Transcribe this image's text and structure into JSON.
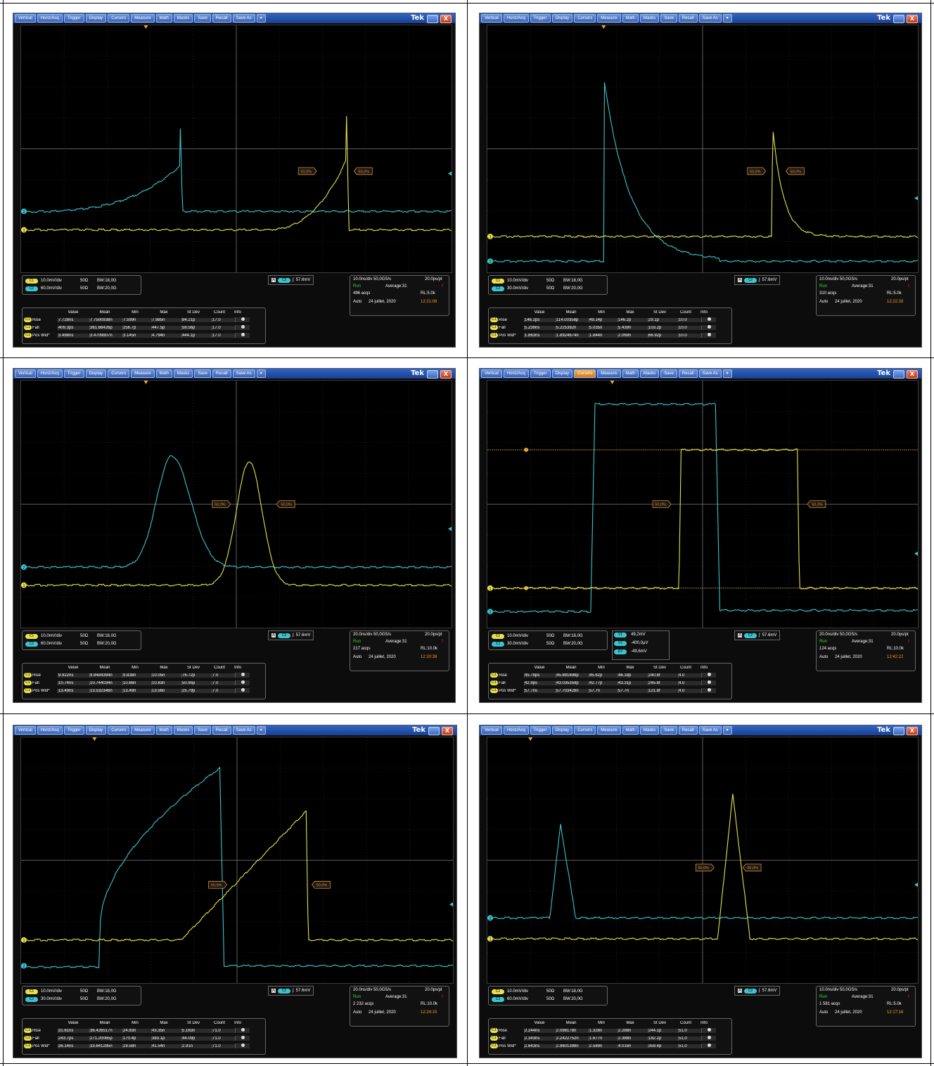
{
  "menu_items": [
    "Vertical",
    "Horiz/Acq",
    "Trigger",
    "Display",
    "Cursors",
    "Measure",
    "Math",
    "Masks",
    "Save",
    "Recall",
    "Save As",
    "▾"
  ],
  "brand": "Tek",
  "close_glyph": "X",
  "colors": {
    "ch1": "#e9e24a",
    "ch2": "#39c6d0",
    "grid": "#5a5a5a",
    "background": "#000000",
    "menu_active": "#f6b04a"
  },
  "meas_header": {
    "value": "Value",
    "mean": "Mean",
    "min": "Min",
    "max": "Max",
    "stdev": "St Dev",
    "count": "Count",
    "info": "Info"
  },
  "screens": [
    {
      "active_menu": -1,
      "ch1": {
        "tag": "C1",
        "scale": "10.0mV/div",
        "imp": "50Ω",
        "bw": "BW:18,0G"
      },
      "ch2": {
        "tag": "C2",
        "scale": "60.0mV/div",
        "imp": "50Ω",
        "bw": "BW:20,0G"
      },
      "trigger": {
        "tag": "C2",
        "level": "57.6mV"
      },
      "horizontal": {
        "timebase": "10.0ns/div 50,0GS/s",
        "res": "20.0ps/pt",
        "run": "Run",
        "avg": "Average:31",
        "acqs": "496 acqs",
        "rl": "RL:5.0k",
        "auto": "Auto",
        "date": "24 juillet, 2020",
        "time": "12:21:08"
      },
      "markers": [
        "50,0%",
        "50,0%"
      ],
      "measurements": [
        {
          "tag": "C1",
          "name": "Rise",
          "value": "7.728ns",
          "mean": "7.7500938n",
          "min": "7.599n",
          "max": "7.985n",
          "stdev": "84.21p",
          "count": "17.0"
        },
        {
          "tag": "C1",
          "name": "Fall",
          "value": "409.3ps",
          "mean": "361.68426p",
          "min": "256.7p",
          "max": "447.5p",
          "stdev": "58.56p",
          "count": "17.0"
        },
        {
          "tag": "C1",
          "name": "Pos Wid*",
          "value": "3.498ns",
          "mean": "3.4709807n",
          "min": "3.145n",
          "max": "4.794n",
          "stdev": "444.1p",
          "count": "17.0"
        }
      ]
    },
    {
      "active_menu": -1,
      "ch1": {
        "tag": "C1",
        "scale": "10.0mV/div",
        "imp": "50Ω",
        "bw": "BW:18,0G"
      },
      "ch2": {
        "tag": "C2",
        "scale": "30.0mV/div",
        "imp": "50Ω",
        "bw": "BW:20,0G"
      },
      "trigger": {
        "tag": "C2",
        "level": "57.6mV"
      },
      "horizontal": {
        "timebase": "10.0ns/div 50,0GS/s",
        "res": "20.0ps/pt",
        "run": "Run",
        "avg": "Average:31",
        "acqs": "310 acqs",
        "rl": "RL:5.0k",
        "auto": "Auto",
        "date": "24 juillet, 2020",
        "time": "12:22:28"
      },
      "markers": [
        "50,0%",
        "50,0%"
      ],
      "measurements": [
        {
          "tag": "C1",
          "name": "Rise",
          "value": "146.2ps",
          "mean": "114.00358p",
          "min": "49.14p",
          "max": "146.2p",
          "stdev": "29.1p",
          "count": "10.0"
        },
        {
          "tag": "C1",
          "name": "Fall",
          "value": "5.239ns",
          "mean": "5.225392n",
          "min": "5.035n",
          "max": "5.439n",
          "stdev": "103.2p",
          "count": "10.0"
        },
        {
          "tag": "C1",
          "name": "Pos Wid*",
          "value": "1.863ns",
          "mean": "1.8924674n",
          "min": "1.844n",
          "max": "2.069n",
          "stdev": "66.92p",
          "count": "10.0"
        }
      ]
    },
    {
      "active_menu": -1,
      "ch1": {
        "tag": "C1",
        "scale": "10.0mV/div",
        "imp": "50Ω",
        "bw": "BW:18,0G"
      },
      "ch2": {
        "tag": "C2",
        "scale": "60.0mV/div",
        "imp": "50Ω",
        "bw": "BW:20,0G"
      },
      "trigger": {
        "tag": "C2",
        "level": "57.6mV"
      },
      "horizontal": {
        "timebase": "20.0ns/div 50,0GS/s",
        "res": "20.0ps/pt",
        "run": "Run",
        "avg": "Average:31",
        "acqs": "217 acqs",
        "rl": "RL:10.0k",
        "auto": "Auto",
        "date": "24 juillet, 2020",
        "time": "12:20:38"
      },
      "markers": [
        "50,0%",
        "50,0%"
      ],
      "measurements": [
        {
          "tag": "C1",
          "name": "Rise",
          "value": "9.922ns",
          "mean": "9.9484394n",
          "min": "9.838n",
          "max": "10.05n",
          "stdev": "76.72p",
          "count": "7.0"
        },
        {
          "tag": "C1",
          "name": "Fall",
          "value": "10.74ns",
          "mean": "10.744034n",
          "min": "10.66n",
          "max": "10.83n",
          "stdev": "50.95p",
          "count": "7.0"
        },
        {
          "tag": "C1",
          "name": "Pos Wid*",
          "value": "13.49ns",
          "mean": "13.532346n",
          "min": "13.49n",
          "max": "13.56n",
          "stdev": "25.79p",
          "count": "7.0"
        }
      ]
    },
    {
      "active_menu": 4,
      "ch1": {
        "tag": "C1",
        "scale": "10.0mV/div",
        "imp": "50Ω",
        "bw": "BW:18,0G"
      },
      "ch2": {
        "tag": "C2",
        "scale": "30.0mV/div",
        "imp": "50Ω",
        "bw": "BW:20,0G"
      },
      "trigger": {
        "tag": "C2",
        "level": "57.6mV"
      },
      "cursors": {
        "v1_label": "V1",
        "v1": "49,2mV",
        "v2_label": "V2",
        "v2": "-400,0µV",
        "dv_label": "ΔV",
        "dv": "-49,6mV"
      },
      "horizontal": {
        "timebase": "20.0ns/div 50,0GS/s",
        "res": "20.0ps/pt",
        "run": "Run",
        "avg": "Average:31",
        "acqs": "124 acqs",
        "rl": "RL:10.0k",
        "auto": "Auto",
        "date": "24 juillet, 2020",
        "time": "12:42:22"
      },
      "markers": [
        "50,0%",
        "50,0%"
      ],
      "measurements": [
        {
          "tag": "C1",
          "name": "Rise",
          "value": "45.78ps",
          "mean": "45.891698p",
          "min": "45.62p",
          "max": "46.18p",
          "stdev": "240.6f",
          "count": "4.0"
        },
        {
          "tag": "C1",
          "name": "Fall",
          "value": "42.9ps",
          "mean": "43.035359p",
          "min": "42.77p",
          "max": "43.31p",
          "stdev": "245.6f",
          "count": "4.0"
        },
        {
          "tag": "C1",
          "name": "Pos Wid*",
          "value": "57.7ns",
          "mean": "57.703428n",
          "min": "57.7n",
          "max": "57.7n",
          "stdev": "121.8f",
          "count": "4.0"
        }
      ]
    },
    {
      "active_menu": -1,
      "ch1": {
        "tag": "C1",
        "scale": "10.0mV/div",
        "imp": "50Ω",
        "bw": "BW:18,0G"
      },
      "ch2": {
        "tag": "C2",
        "scale": "30.0mV/div",
        "imp": "50Ω",
        "bw": "BW:20,0G"
      },
      "trigger": {
        "tag": "C2",
        "level": "57.6mV"
      },
      "horizontal": {
        "timebase": "20.0ns/div 50,0GS/s",
        "res": "20.0ps/pt",
        "run": "Run",
        "avg": "Average:31",
        "acqs": "2 232 acqs",
        "rl": "RL:10.0k",
        "auto": "Auto",
        "date": "24 juillet, 2020",
        "time": "12:24:15"
      },
      "markers": [
        "50,0%",
        "50,0%"
      ],
      "measurements": [
        {
          "tag": "C1",
          "name": "Rise",
          "value": "31.61ns",
          "mean": "36.426517n",
          "min": "24.83n",
          "max": "43.35n",
          "stdev": "5.163n",
          "count": "71.0"
        },
        {
          "tag": "C1",
          "name": "Fall",
          "value": "243.7ps",
          "mean": "271.20065p",
          "min": "170.4p",
          "max": "383.1p",
          "stdev": "44.09p",
          "count": "71.0"
        },
        {
          "tag": "C1",
          "name": "Pos Wid*",
          "value": "36.14ns",
          "mean": "33.641285n",
          "min": "29.58n",
          "max": "41.54n",
          "stdev": "2.91n",
          "count": "71.0"
        }
      ]
    },
    {
      "active_menu": -1,
      "ch1": {
        "tag": "C1",
        "scale": "10.0mV/div",
        "imp": "50Ω",
        "bw": "BW:18,0G"
      },
      "ch2": {
        "tag": "C2",
        "scale": "60.0mV/div",
        "imp": "50Ω",
        "bw": "BW:20,0G"
      },
      "trigger": {
        "tag": "C2",
        "level": "57.6mV"
      },
      "horizontal": {
        "timebase": "10.0ns/div 50,0GS/s",
        "res": "20.0ps/pt",
        "run": "Run",
        "avg": "Average:31",
        "acqs": "1 581 acqs",
        "rl": "RL:5.0k",
        "auto": "Auto",
        "date": "24 juillet, 2020",
        "time": "12:17:16"
      },
      "markers": [
        "50,0%",
        "50,0%"
      ],
      "measurements": [
        {
          "tag": "C1",
          "name": "Rise",
          "value": "2.244ns",
          "mean": "2.098178n",
          "min": "1.328n",
          "max": "2.288n",
          "stdev": "244.1p",
          "count": "51.0"
        },
        {
          "tag": "C1",
          "name": "Fall",
          "value": "2.343ns",
          "mean": "2.2422752n",
          "min": "1.677n",
          "max": "2.388n",
          "stdev": "182.2p",
          "count": "51.0"
        },
        {
          "tag": "C1",
          "name": "Pos Wid*",
          "value": "2.643ns",
          "mean": "2.8601398n",
          "min": "2.589n",
          "max": "4.016n",
          "stdev": "359.4p",
          "count": "51.0"
        }
      ]
    }
  ]
}
